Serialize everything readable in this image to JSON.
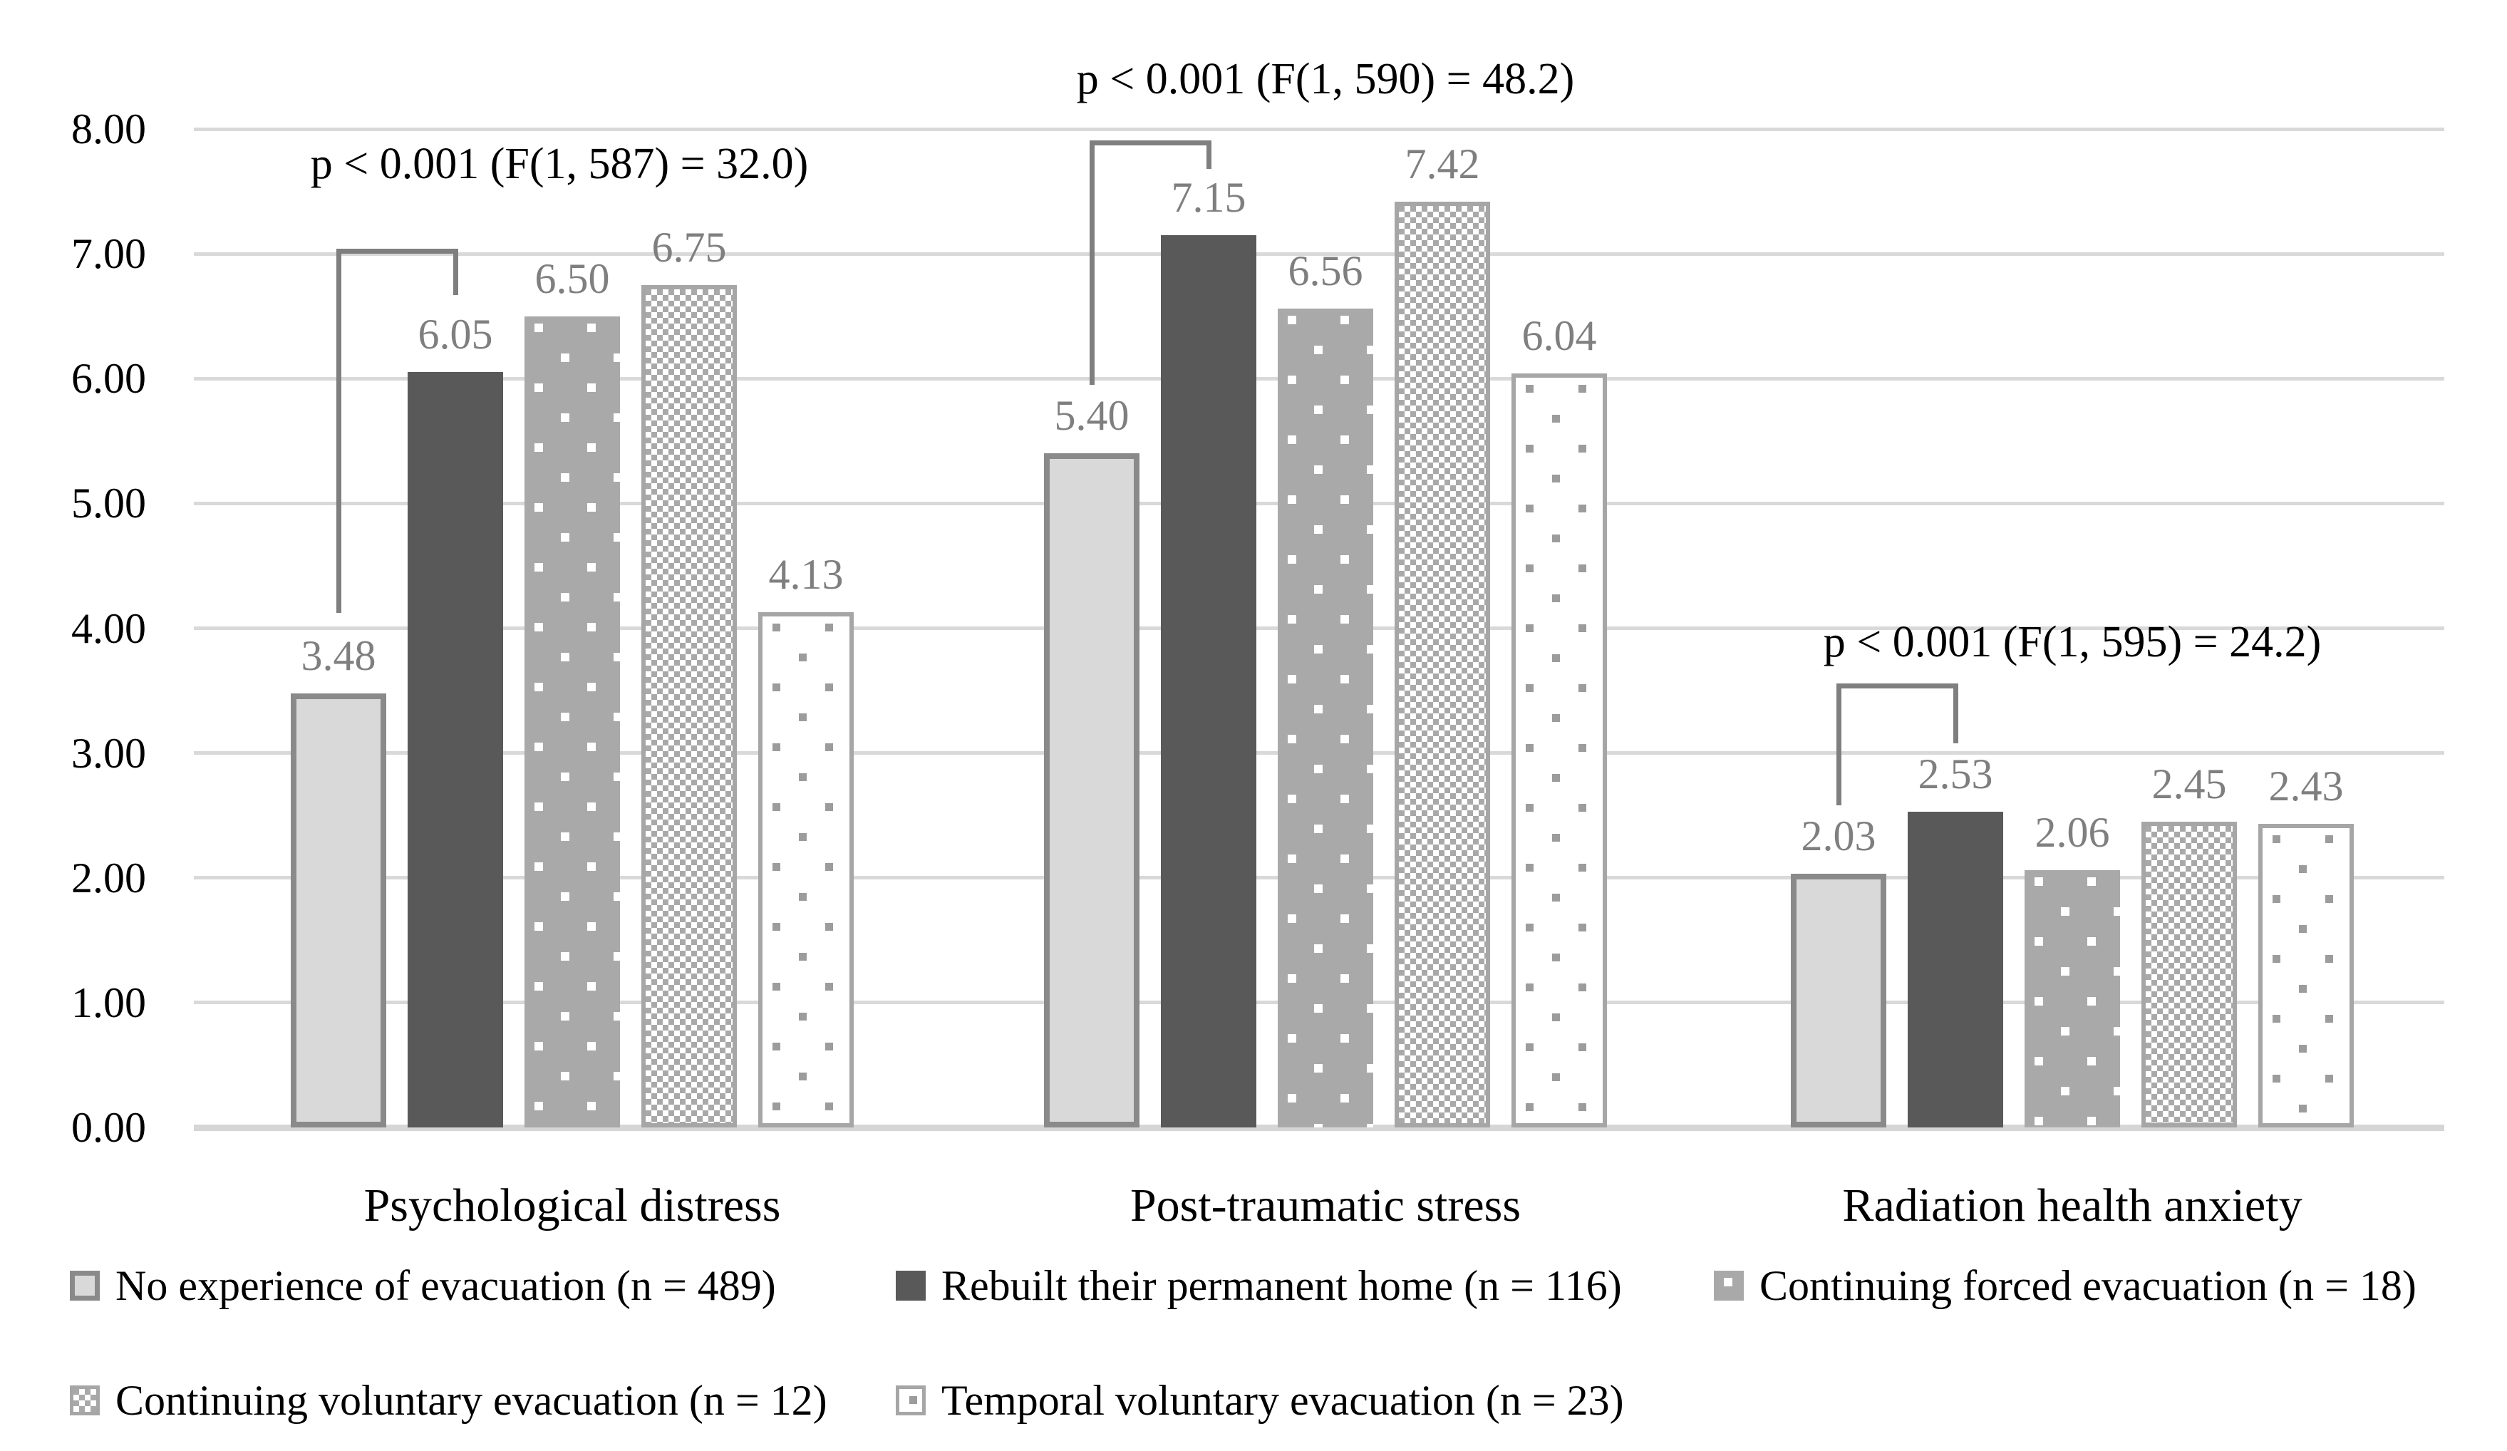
{
  "chart_data": {
    "type": "bar",
    "title": "",
    "categories": [
      "Psychological distress",
      "Post-traumatic stress",
      "Radiation health anxiety"
    ],
    "series": [
      {
        "name": "No experience of evacuation (n = 489)",
        "values": [
          3.48,
          5.4,
          2.03
        ],
        "pattern": "solid-light",
        "fill": "#d9d9d9",
        "border": "#8a8a8a"
      },
      {
        "name": "Rebuilt their permanent home (n = 116)",
        "values": [
          6.05,
          7.15,
          2.53
        ],
        "pattern": "solid-dark",
        "fill": "#595959",
        "border": ""
      },
      {
        "name": "Continuing forced evacuation (n = 18)",
        "values": [
          6.5,
          6.56,
          2.06
        ],
        "pattern": "white-dots-on-gray",
        "fill": "#a9a9a9",
        "border": ""
      },
      {
        "name": "Continuing voluntary evacuation (n = 12)",
        "values": [
          6.75,
          7.42,
          2.45
        ],
        "pattern": "checkerboard",
        "fill": "#ffffff",
        "border": "#a6a6a6"
      },
      {
        "name": "Temporal voluntary evacuation (n = 23)",
        "values": [
          4.13,
          6.04,
          2.43
        ],
        "pattern": "gray-dots-on-white",
        "fill": "#ffffff",
        "border": "#a6a6a6"
      }
    ],
    "value_labels": [
      [
        "3.48",
        "6.05",
        "6.50",
        "6.75",
        "4.13"
      ],
      [
        "5.40",
        "7.15",
        "6.56",
        "7.42",
        "6.04"
      ],
      [
        "2.03",
        "2.53",
        "2.06",
        "2.45",
        "2.43"
      ]
    ],
    "ylim": [
      0,
      8
    ],
    "ytick_step": 1,
    "ytick_labels": [
      "0.00",
      "1.00",
      "2.00",
      "3.00",
      "4.00",
      "5.00",
      "6.00",
      "7.00",
      "8.00"
    ],
    "xlabel": "",
    "ylabel": "",
    "grid": true,
    "legend_position": "bottom",
    "annotations": [
      {
        "text": "p < 0.001 (F(1, 587) = 32.0)",
        "group": 0,
        "y_value": 7.72
      },
      {
        "text": "p < 0.001 (F(1, 590) = 48.2)",
        "group": 1,
        "y_value": 8.4
      },
      {
        "text": "p < 0.001 (F(1, 595) = 24.2)",
        "group": 2,
        "y_value": 3.89
      }
    ],
    "brackets": [
      {
        "group": 0,
        "from_series": 0,
        "to_series": 1,
        "top_value": 7.04,
        "left_end_value": 4.12,
        "right_end_value": 6.67
      },
      {
        "group": 1,
        "from_series": 0,
        "to_series": 1,
        "top_value": 7.91,
        "left_end_value": 5.95,
        "right_end_value": 7.68
      },
      {
        "group": 2,
        "from_series": 0,
        "to_series": 1,
        "top_value": 3.56,
        "left_end_value": 2.58,
        "right_end_value": 3.08
      }
    ],
    "colors": {
      "gridline": "#d9d9d9",
      "axis_baseline": "#d6d6d6",
      "tick_text": "#000000",
      "value_label_text": "#7f7f7f",
      "bracket": "#7f7f7f",
      "annotation_text": "#000000"
    }
  }
}
